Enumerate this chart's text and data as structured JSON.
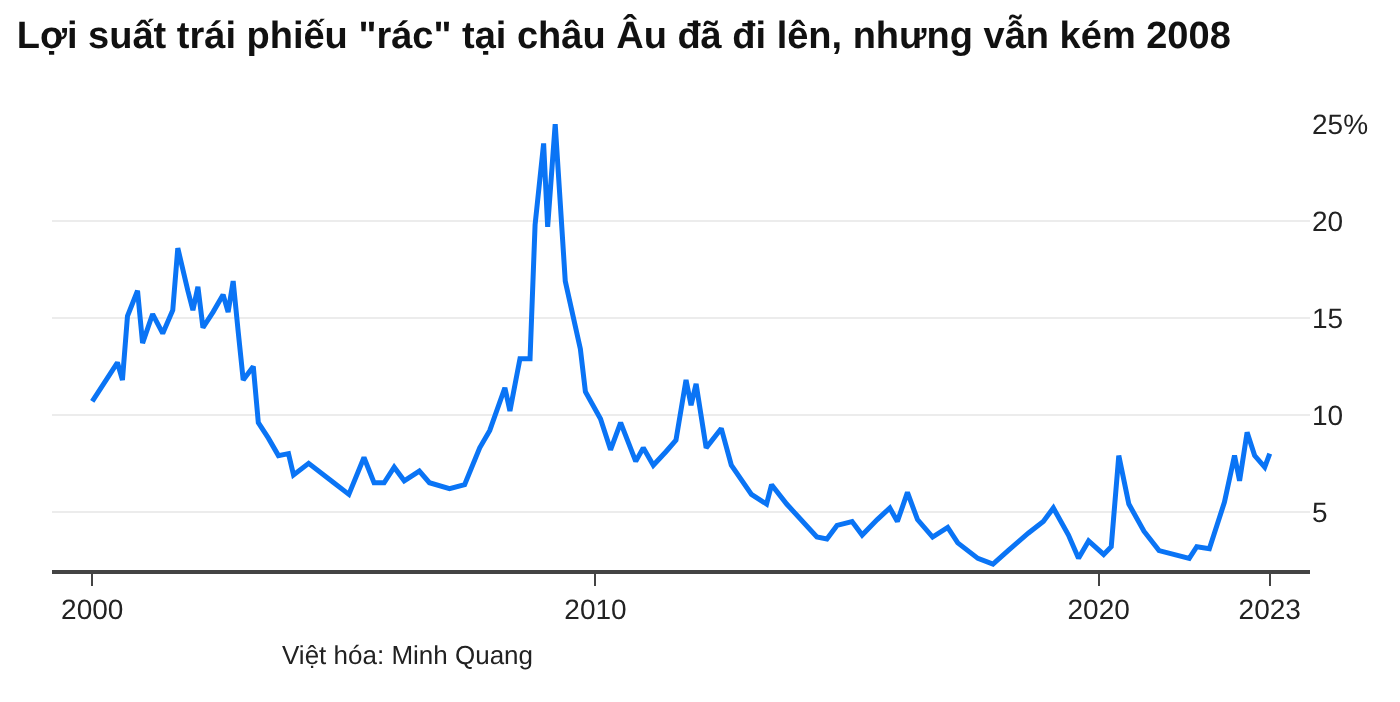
{
  "chart_data": {
    "type": "line",
    "title": "Lợi suất trái phiếu \"rác\" tại châu Âu đã đi lên, nhưng vẫn kém 2008",
    "annotations": [
      "Việt hóa: Minh Quang"
    ],
    "x": [
      2000.0,
      2000.5,
      2000.6,
      2000.7,
      2000.9,
      2001.0,
      2001.2,
      2001.4,
      2001.6,
      2001.7,
      2001.9,
      2002.0,
      2002.1,
      2002.2,
      2002.4,
      2002.6,
      2002.7,
      2002.8,
      2002.9,
      2003.0,
      2003.2,
      2003.3,
      2003.5,
      2003.7,
      2003.9,
      2004.0,
      2004.3,
      2004.8,
      2005.1,
      2005.4,
      2005.6,
      2005.8,
      2006.0,
      2006.2,
      2006.5,
      2006.7,
      2007.1,
      2007.4,
      2007.7,
      2007.9,
      2008.2,
      2008.3,
      2008.5,
      2008.7,
      2008.8,
      2008.97,
      2009.05,
      2009.2,
      2009.4,
      2009.7,
      2009.8,
      2010.1,
      2010.3,
      2010.5,
      2010.8,
      2010.95,
      2011.15,
      2011.4,
      2011.6,
      2011.8,
      2011.9,
      2012.0,
      2012.2,
      2012.5,
      2012.7,
      2013.1,
      2013.4,
      2013.5,
      2013.8,
      2014.4,
      2014.6,
      2014.8,
      2015.1,
      2015.3,
      2015.6,
      2015.85,
      2016.0,
      2016.2,
      2016.4,
      2016.7,
      2017.0,
      2017.2,
      2017.6,
      2017.9,
      2018.2,
      2018.6,
      2018.9,
      2019.1,
      2019.4,
      2019.6,
      2019.8,
      2020.1,
      2020.25,
      2020.4,
      2020.6,
      2020.9,
      2021.2,
      2021.8,
      2021.95,
      2022.2,
      2022.5,
      2022.7,
      2022.8,
      2022.95,
      2023.1,
      2023.3,
      2023.4
    ],
    "series": [
      {
        "color": "#0a74f5",
        "values": [
          10.7,
          12.7,
          11.8,
          15.1,
          16.4,
          13.7,
          15.2,
          14.2,
          15.4,
          18.6,
          16.4,
          15.4,
          16.6,
          14.5,
          15.3,
          16.2,
          15.3,
          16.9,
          14.3,
          11.8,
          12.5,
          9.6,
          8.8,
          7.9,
          8.0,
          6.9,
          7.5,
          6.5,
          5.9,
          7.8,
          6.5,
          6.5,
          7.3,
          6.6,
          7.1,
          6.5,
          6.2,
          6.4,
          8.3,
          9.2,
          11.4,
          10.2,
          12.9,
          12.9,
          19.8,
          24.0,
          19.7,
          25.0,
          16.9,
          13.4,
          11.2,
          9.8,
          8.2,
          9.6,
          7.6,
          8.3,
          7.4,
          8.1,
          8.7,
          11.8,
          10.5,
          11.6,
          8.3,
          9.3,
          7.4,
          5.9,
          5.4,
          6.4,
          5.4,
          3.7,
          3.6,
          4.3,
          4.5,
          3.8,
          4.6,
          5.2,
          4.5,
          6.0,
          4.6,
          3.7,
          4.2,
          3.4,
          2.6,
          2.3,
          3.0,
          3.9,
          4.5,
          5.2,
          3.8,
          2.6,
          3.5,
          2.8,
          3.2,
          7.9,
          5.4,
          4.0,
          3.0,
          2.6,
          3.2,
          3.1,
          5.5,
          7.9,
          6.6,
          9.1,
          7.9,
          7.3,
          8.0
        ]
      }
    ],
    "xlim": [
      1999.2,
      2024.2
    ],
    "xticks": [
      2000,
      2010,
      2020,
      {
        "value": 2023.4,
        "label": "2023"
      }
    ],
    "ylim": [
      2,
      25
    ],
    "yticks": [
      5,
      10,
      15,
      20,
      {
        "value": 25,
        "label": "25%"
      }
    ],
    "grid": "y",
    "line_style": "solid",
    "marker": "none",
    "legend": false
  }
}
